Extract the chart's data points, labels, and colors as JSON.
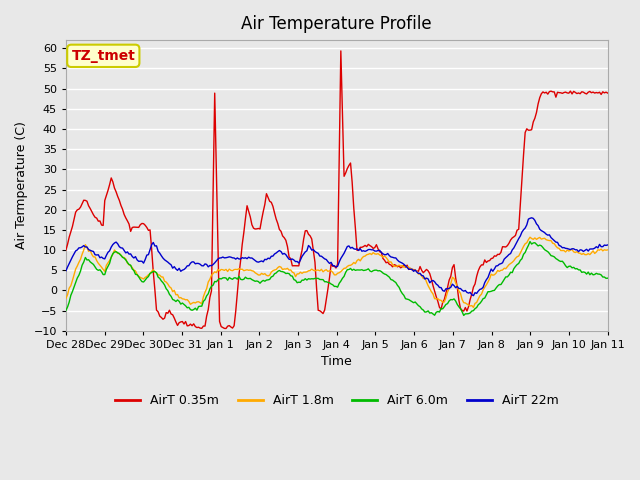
{
  "title": "Air Temperature Profile",
  "xlabel": "Time",
  "ylabel": "Air Termperature (C)",
  "ylim": [
    -10,
    62
  ],
  "yticks": [
    -10,
    -5,
    0,
    5,
    10,
    15,
    20,
    25,
    30,
    35,
    40,
    45,
    50,
    55,
    60
  ],
  "background_color": "#e8e8e8",
  "plot_bg_color": "#e8e8e8",
  "grid_color": "#ffffff",
  "annotation_text": "TZ_tmet",
  "annotation_bg": "#ffffcc",
  "annotation_border": "#cccc00",
  "annotation_fg": "#cc0000",
  "colors": {
    "red": "#dd0000",
    "orange": "#ffaa00",
    "green": "#00bb00",
    "blue": "#0000cc"
  },
  "legend_labels": [
    "AirT 0.35m",
    "AirT 1.8m",
    "AirT 6.0m",
    "AirT 22m"
  ],
  "xtick_labels": [
    "Dec 28",
    "Dec 29",
    "Dec 30",
    "Dec 31",
    "Jan 1",
    "Jan 2",
    "Jan 3",
    "Jan 4",
    "Jan 5",
    "Jan 6",
    "Jan 7",
    "Jan 8",
    "Jan 9",
    "Jan 10",
    "Jan 11"
  ],
  "xtick_positions": [
    0,
    1,
    2,
    3,
    4,
    5,
    6,
    7,
    8,
    9,
    10,
    11,
    12,
    13,
    14
  ]
}
